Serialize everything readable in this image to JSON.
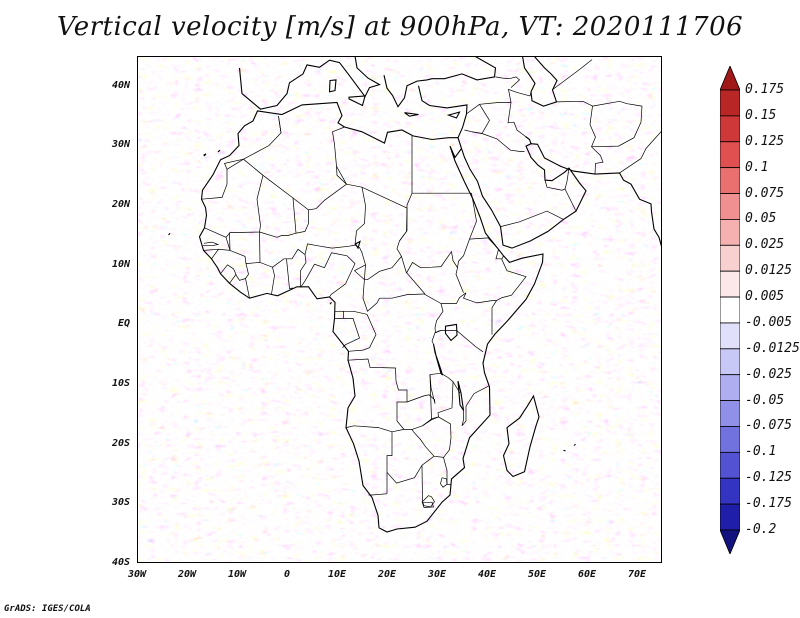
{
  "title": "Vertical velocity [m/s] at 900hPa, VT: 2020111706",
  "footer": "GrADS: IGES/COLA",
  "map": {
    "lon_range": [
      -30,
      75
    ],
    "lat_range": [
      -40,
      45
    ],
    "lat_labels": [
      "40N",
      "30N",
      "20N",
      "10N",
      "EQ",
      "10S",
      "20S",
      "30S",
      "40S"
    ],
    "lat_values": [
      40,
      30,
      20,
      10,
      0,
      -10,
      -20,
      -30,
      -40
    ],
    "lon_labels": [
      "30W",
      "20W",
      "10W",
      "0",
      "10E",
      "20E",
      "30E",
      "40E",
      "50E",
      "60E",
      "70E"
    ],
    "lon_values": [
      -30,
      -20,
      -10,
      0,
      10,
      20,
      30,
      40,
      50,
      60,
      70
    ]
  },
  "colorbar": {
    "labels": [
      "0.175",
      "0.15",
      "0.125",
      "0.1",
      "0.075",
      "0.05",
      "0.025",
      "0.0125",
      "0.005",
      "-0.005",
      "-0.0125",
      "-0.025",
      "-0.05",
      "-0.075",
      "-0.1",
      "-0.125",
      "-0.175",
      "-0.2"
    ],
    "colors": [
      "#a01818",
      "#b82626",
      "#cf3838",
      "#e05050",
      "#ea7070",
      "#f09090",
      "#f5b0b0",
      "#f9d0d0",
      "#fce8e8",
      "#ffffff",
      "#e0e0fb",
      "#c8c8f6",
      "#aeaef0",
      "#9090e8",
      "#7272de",
      "#5252d2",
      "#3434c2",
      "#1e1ea8",
      "#12127e"
    ]
  }
}
